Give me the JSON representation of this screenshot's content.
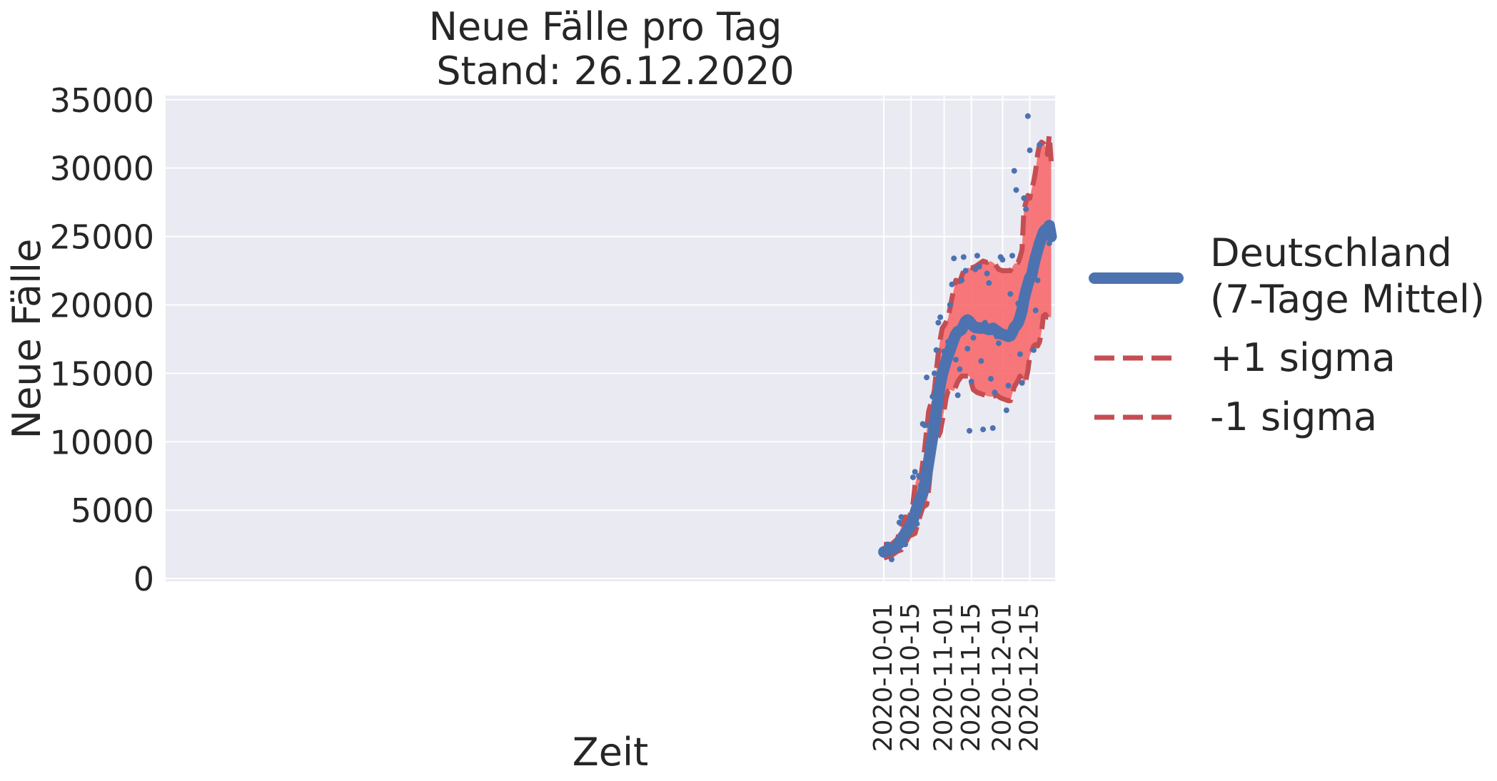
{
  "chart_data": {
    "type": "line",
    "title": "Neue Fälle pro Tag",
    "subtitle": "Stand: 26.12.2020",
    "xlabel": "Zeit",
    "ylabel": "Neue Fälle",
    "grid": true,
    "legend_position": "right",
    "xlim": [
      "2019-09-28",
      "2020-12-28"
    ],
    "ylim": [
      -200,
      35300
    ],
    "x_ticks": [
      "2020-10-01",
      "2020-10-15",
      "2020-11-01",
      "2020-11-15",
      "2020-12-01",
      "2020-12-15"
    ],
    "y_ticks": [
      0,
      5000,
      10000,
      15000,
      20000,
      25000,
      30000,
      35000
    ],
    "legend": [
      {
        "label_lines": [
          "Deutschland",
          "(7-Tage Mittel)"
        ],
        "style": "solid",
        "color": "#4c72b0"
      },
      {
        "label_lines": [
          "+1 sigma"
        ],
        "style": "dashed",
        "color": "#c44e52"
      },
      {
        "label_lines": [
          "-1 sigma"
        ],
        "style": "dashed",
        "color": "#c44e52"
      }
    ],
    "colors": {
      "mean": "#4c72b0",
      "sigma": "#c44e52",
      "band": "#f8696b",
      "points": "#4c72b0",
      "plot_bg": "#eaeaf2",
      "grid": "#ffffff"
    },
    "series": [
      {
        "name": "Deutschland\n(7-Tage Mittel)",
        "kind": "line",
        "x": [
          "2020-10-01",
          "2020-10-02",
          "2020-10-03",
          "2020-10-04",
          "2020-10-05",
          "2020-10-06",
          "2020-10-07",
          "2020-10-08",
          "2020-10-09",
          "2020-10-10",
          "2020-10-11",
          "2020-10-12",
          "2020-10-13",
          "2020-10-14",
          "2020-10-15",
          "2020-10-16",
          "2020-10-17",
          "2020-10-18",
          "2020-10-19",
          "2020-10-20",
          "2020-10-21",
          "2020-10-22",
          "2020-10-23",
          "2020-10-24",
          "2020-10-25",
          "2020-10-26",
          "2020-10-27",
          "2020-10-28",
          "2020-10-29",
          "2020-10-30",
          "2020-10-31",
          "2020-11-01",
          "2020-11-02",
          "2020-11-03",
          "2020-11-04",
          "2020-11-05",
          "2020-11-06",
          "2020-11-07",
          "2020-11-08",
          "2020-11-09",
          "2020-11-10",
          "2020-11-11",
          "2020-11-12",
          "2020-11-13",
          "2020-11-14",
          "2020-11-15",
          "2020-11-16",
          "2020-11-17",
          "2020-11-18",
          "2020-11-19",
          "2020-11-20",
          "2020-11-21",
          "2020-11-22",
          "2020-11-23",
          "2020-11-24",
          "2020-11-25",
          "2020-11-26",
          "2020-11-27",
          "2020-11-28",
          "2020-11-29",
          "2020-11-30",
          "2020-12-01",
          "2020-12-02",
          "2020-12-03",
          "2020-12-04",
          "2020-12-05",
          "2020-12-06",
          "2020-12-07",
          "2020-12-08",
          "2020-12-09",
          "2020-12-10",
          "2020-12-11",
          "2020-12-12",
          "2020-12-13",
          "2020-12-14",
          "2020-12-15",
          "2020-12-16",
          "2020-12-17",
          "2020-12-18",
          "2020-12-19",
          "2020-12-20",
          "2020-12-21",
          "2020-12-22",
          "2020-12-23",
          "2020-12-24",
          "2020-12-25",
          "2020-12-26"
        ],
        "y": [
          1950,
          2000,
          2050,
          2100,
          2150,
          2200,
          2300,
          2450,
          2600,
          2850,
          3100,
          3300,
          3500,
          3700,
          3950,
          4300,
          4750,
          5200,
          5600,
          5950,
          6250,
          6800,
          7600,
          8500,
          9400,
          10300,
          11100,
          12200,
          13300,
          14200,
          14900,
          15400,
          15900,
          16300,
          16700,
          17100,
          17500,
          17850,
          18050,
          18100,
          18200,
          18500,
          18800,
          18900,
          18800,
          18600,
          18450,
          18350,
          18350,
          18300,
          18300,
          18350,
          18300,
          18250,
          18200,
          18200,
          18300,
          18200,
          18100,
          18000,
          17900,
          17850,
          17800,
          17750,
          17700,
          17750,
          18000,
          18350,
          18500,
          18700,
          19100,
          19600,
          20400,
          21000,
          21500,
          22000,
          22200,
          22900,
          23500,
          24000,
          24500,
          24900,
          25300,
          25500,
          25300,
          25800,
          25000
        ]
      },
      {
        "name": "+1 sigma",
        "kind": "line",
        "x": [
          "2020-10-01",
          "2020-10-05",
          "2020-10-08",
          "2020-10-10",
          "2020-10-12",
          "2020-10-14",
          "2020-10-16",
          "2020-10-17",
          "2020-10-18",
          "2020-10-20",
          "2020-10-22",
          "2020-10-24",
          "2020-10-25",
          "2020-10-26",
          "2020-10-27",
          "2020-10-28",
          "2020-10-29",
          "2020-10-30",
          "2020-10-31",
          "2020-11-01",
          "2020-11-03",
          "2020-11-05",
          "2020-11-07",
          "2020-11-09",
          "2020-11-11",
          "2020-11-13",
          "2020-11-15",
          "2020-11-17",
          "2020-11-19",
          "2020-11-21",
          "2020-11-23",
          "2020-11-25",
          "2020-11-27",
          "2020-11-29",
          "2020-12-01",
          "2020-12-03",
          "2020-12-05",
          "2020-12-07",
          "2020-12-09",
          "2020-12-10",
          "2020-12-11",
          "2020-12-12",
          "2020-12-14",
          "2020-12-15",
          "2020-12-16",
          "2020-12-17",
          "2020-12-18",
          "2020-12-19",
          "2020-12-20",
          "2020-12-21",
          "2020-12-22",
          "2020-12-23",
          "2020-12-24",
          "2020-12-25",
          "2020-12-26"
        ],
        "y": [
          2500,
          2500,
          2900,
          3800,
          4500,
          4400,
          5500,
          6800,
          7400,
          7400,
          9500,
          12200,
          12700,
          13100,
          13800,
          15200,
          16500,
          17500,
          18300,
          18500,
          19000,
          20500,
          21800,
          21700,
          22500,
          22700,
          22700,
          22800,
          23000,
          23200,
          23100,
          23200,
          23000,
          22600,
          22500,
          22500,
          22500,
          23000,
          23100,
          23500,
          24000,
          27000,
          28000,
          27800,
          28500,
          29000,
          29800,
          31000,
          31700,
          31900,
          31800,
          31600,
          31000,
          32400,
          30500
        ]
      },
      {
        "name": "-1 sigma",
        "kind": "line",
        "x": [
          "2020-10-01",
          "2020-10-05",
          "2020-10-08",
          "2020-10-10",
          "2020-10-12",
          "2020-10-14",
          "2020-10-17",
          "2020-10-19",
          "2020-10-21",
          "2020-10-23",
          "2020-10-24",
          "2020-10-25",
          "2020-10-26",
          "2020-10-27",
          "2020-10-28",
          "2020-10-29",
          "2020-10-30",
          "2020-11-01",
          "2020-11-02",
          "2020-11-03",
          "2020-11-04",
          "2020-11-06",
          "2020-11-08",
          "2020-11-10",
          "2020-11-12",
          "2020-11-14",
          "2020-11-16",
          "2020-11-18",
          "2020-11-20",
          "2020-11-22",
          "2020-11-24",
          "2020-11-26",
          "2020-11-28",
          "2020-11-30",
          "2020-12-02",
          "2020-12-04",
          "2020-12-05",
          "2020-12-07",
          "2020-12-09",
          "2020-12-10",
          "2020-12-11",
          "2020-12-12",
          "2020-12-13",
          "2020-12-14",
          "2020-12-15",
          "2020-12-16",
          "2020-12-17",
          "2020-12-18",
          "2020-12-19",
          "2020-12-20",
          "2020-12-21",
          "2020-12-22",
          "2020-12-23",
          "2020-12-24",
          "2020-12-25",
          "2020-12-26"
        ],
        "y": [
          1500,
          1700,
          2000,
          2100,
          2600,
          3100,
          3300,
          4300,
          5200,
          5400,
          6500,
          8000,
          9000,
          9800,
          10200,
          10400,
          10700,
          12300,
          13200,
          13700,
          13800,
          13700,
          14400,
          14800,
          14800,
          14800,
          13800,
          13600,
          13500,
          13400,
          13300,
          13300,
          13400,
          13200,
          13100,
          13000,
          13000,
          14000,
          14500,
          14800,
          14600,
          14300,
          14500,
          15200,
          16300,
          16600,
          17000,
          17100,
          17000,
          17300,
          18000,
          19200,
          19300,
          19100,
          19100,
          19100
        ]
      },
      {
        "name": "",
        "kind": "scatter",
        "x": [
          "2020-10-01",
          "2020-10-02",
          "2020-10-03",
          "2020-10-04",
          "2020-10-05",
          "2020-10-06",
          "2020-10-07",
          "2020-10-08",
          "2020-10-09",
          "2020-10-10",
          "2020-10-11",
          "2020-10-12",
          "2020-10-13",
          "2020-10-14",
          "2020-10-15",
          "2020-10-16",
          "2020-10-17",
          "2020-10-18",
          "2020-10-19",
          "2020-10-20",
          "2020-10-21",
          "2020-10-22",
          "2020-10-23",
          "2020-10-24",
          "2020-10-25",
          "2020-10-26",
          "2020-10-27",
          "2020-10-28",
          "2020-10-29",
          "2020-10-30",
          "2020-10-31",
          "2020-11-01",
          "2020-11-02",
          "2020-11-03",
          "2020-11-04",
          "2020-11-05",
          "2020-11-06",
          "2020-11-07",
          "2020-11-08",
          "2020-11-09",
          "2020-11-10",
          "2020-11-11",
          "2020-11-12",
          "2020-11-13",
          "2020-11-14",
          "2020-11-15",
          "2020-11-16",
          "2020-11-17",
          "2020-11-18",
          "2020-11-19",
          "2020-11-20",
          "2020-11-21",
          "2020-11-22",
          "2020-11-23",
          "2020-11-24",
          "2020-11-25",
          "2020-11-26",
          "2020-11-27",
          "2020-11-28",
          "2020-11-29",
          "2020-11-30",
          "2020-12-01",
          "2020-12-02",
          "2020-12-03",
          "2020-12-04",
          "2020-12-05",
          "2020-12-06",
          "2020-12-07",
          "2020-12-08",
          "2020-12-09",
          "2020-12-10",
          "2020-12-11",
          "2020-12-12",
          "2020-12-13",
          "2020-12-14",
          "2020-12-15",
          "2020-12-16",
          "2020-12-17",
          "2020-12-18",
          "2020-12-19",
          "2020-12-20",
          "2020-12-21",
          "2020-12-22",
          "2020-12-23",
          "2020-12-24",
          "2020-12-25",
          "2020-12-26"
        ],
        "y": [
          2100,
          1800,
          2500,
          1900,
          1400,
          2300,
          2600,
          2600,
          4100,
          4500,
          2500,
          2500,
          4000,
          4100,
          4400,
          7400,
          7800,
          4000,
          7500,
          6800,
          11300,
          11200,
          14700,
          11200,
          8700,
          13300,
          15000,
          16700,
          18700,
          19100,
          14200,
          16600,
          15400,
          17300,
          20000,
          21500,
          23400,
          16000,
          13400,
          15300,
          21800,
          23500,
          22500,
          16800,
          10800,
          14400,
          17600,
          22600,
          23600,
          22800,
          15900,
          10900,
          18700,
          22300,
          21600,
          14600,
          11000,
          13600,
          17700,
          17200,
          23500,
          23300,
          17800,
          12300,
          14100,
          20800,
          23600,
          29800,
          28400,
          20100,
          16400,
          14300,
          27800,
          27000,
          33800,
          31300,
          22800,
          16700,
          19600,
          21800,
          31700,
          25100,
          25500,
          25300,
          25000,
          24500,
          25200
        ]
      }
    ]
  }
}
